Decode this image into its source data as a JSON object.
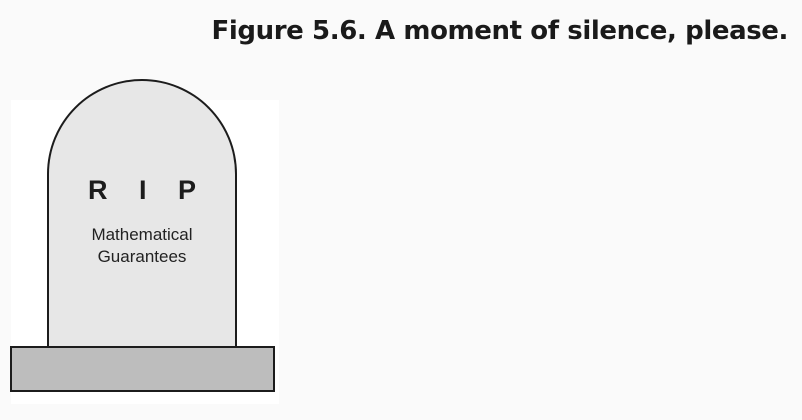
{
  "caption": "Figure 5.6. A moment of silence, please.",
  "tombstone": {
    "title": "R I P",
    "line1": "Mathematical",
    "line2": "Guarantees"
  },
  "colors": {
    "stone": "#e7e7e7",
    "base": "#bdbdbd",
    "outline": "#1c1c1c",
    "background": "#fafafa"
  }
}
